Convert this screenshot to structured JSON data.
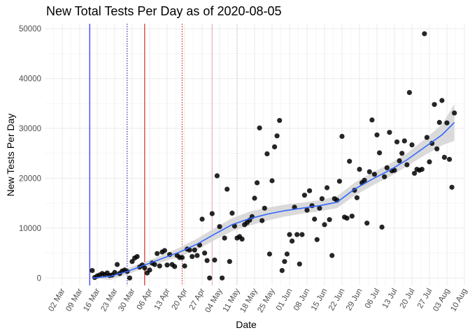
{
  "chart_data": {
    "type": "scatter",
    "title": "New Total Tests Per Day as of 2020-08-05",
    "xlabel": "Date",
    "ylabel": "New Tests Per Day",
    "x_type": "date",
    "xlim": [
      "2020-02-24",
      "2020-08-10"
    ],
    "ylim": [
      -1500,
      51000
    ],
    "grid": true,
    "legend": "none",
    "x_ticks": [
      "2020-03-02",
      "2020-03-09",
      "2020-03-16",
      "2020-03-23",
      "2020-03-30",
      "2020-04-06",
      "2020-04-13",
      "2020-04-20",
      "2020-04-27",
      "2020-05-04",
      "2020-05-11",
      "2020-05-18",
      "2020-05-25",
      "2020-06-01",
      "2020-06-08",
      "2020-06-15",
      "2020-06-22",
      "2020-06-29",
      "2020-07-06",
      "2020-07-13",
      "2020-07-20",
      "2020-07-27",
      "2020-08-03",
      "2020-08-10"
    ],
    "x_tick_labels": [
      "02 Mar",
      "09 Mar",
      "16 Mar",
      "23 Mar",
      "30 Mar",
      "06 Apr",
      "13 Apr",
      "20 Apr",
      "27 Apr",
      "04 May",
      "11 May",
      "18 May",
      "25 May",
      "01 Jun",
      "08 Jun",
      "15 Jun",
      "22 Jun",
      "29 Jun",
      "06 Jul",
      "13 Jul",
      "20 Jul",
      "27 Jul",
      "03 Aug",
      "10 Aug"
    ],
    "y_ticks": [
      0,
      10000,
      20000,
      30000,
      40000,
      50000
    ],
    "y_tick_labels": [
      "0",
      "10000",
      "20000",
      "30000",
      "40000",
      "50000"
    ],
    "vlines": [
      {
        "date": "2020-03-13",
        "color": "#0000ff",
        "style": "solid"
      },
      {
        "date": "2020-03-28",
        "color": "#00008b",
        "style": "dotted"
      },
      {
        "date": "2020-04-04",
        "color": "#cc0000",
        "style": "solid"
      },
      {
        "date": "2020-04-19",
        "color": "#cc0000",
        "style": "dotted"
      },
      {
        "date": "2020-05-01",
        "color": "#e8a0c0",
        "style": "solid"
      },
      {
        "date": "2020-05-11",
        "color": "#bbbbbb",
        "style": "dotted"
      }
    ],
    "series": [
      {
        "type": "scatter",
        "color": "#000000",
        "points": [
          [
            "2020-03-14",
            1500
          ],
          [
            "2020-03-15",
            100
          ],
          [
            "2020-03-16",
            400
          ],
          [
            "2020-03-17",
            600
          ],
          [
            "2020-03-18",
            900
          ],
          [
            "2020-03-19",
            700
          ],
          [
            "2020-03-20",
            1000
          ],
          [
            "2020-03-21",
            500
          ],
          [
            "2020-03-22",
            600
          ],
          [
            "2020-03-23",
            1100
          ],
          [
            "2020-03-24",
            2700
          ],
          [
            "2020-03-25",
            900
          ],
          [
            "2020-03-26",
            1400
          ],
          [
            "2020-03-27",
            1600
          ],
          [
            "2020-03-28",
            1300
          ],
          [
            "2020-03-29",
            0
          ],
          [
            "2020-03-30",
            3300
          ],
          [
            "2020-03-31",
            4000
          ],
          [
            "2020-04-01",
            4300
          ],
          [
            "2020-04-02",
            2200
          ],
          [
            "2020-04-03",
            2600
          ],
          [
            "2020-04-04",
            2000
          ],
          [
            "2020-04-05",
            1000
          ],
          [
            "2020-04-06",
            1600
          ],
          [
            "2020-04-07",
            3000
          ],
          [
            "2020-04-08",
            2700
          ],
          [
            "2020-04-09",
            4900
          ],
          [
            "2020-04-10",
            2400
          ],
          [
            "2020-04-11",
            5200
          ],
          [
            "2020-04-12",
            5500
          ],
          [
            "2020-04-13",
            2600
          ],
          [
            "2020-04-14",
            4700
          ],
          [
            "2020-04-15",
            2700
          ],
          [
            "2020-04-16",
            2300
          ],
          [
            "2020-04-17",
            4500
          ],
          [
            "2020-04-18",
            4100
          ],
          [
            "2020-04-19",
            4100
          ],
          [
            "2020-04-20",
            2400
          ],
          [
            "2020-04-21",
            5800
          ],
          [
            "2020-04-22",
            5600
          ],
          [
            "2020-04-23",
            4300
          ],
          [
            "2020-04-24",
            5600
          ],
          [
            "2020-04-25",
            4500
          ],
          [
            "2020-04-26",
            6600
          ],
          [
            "2020-04-27",
            11800
          ],
          [
            "2020-04-28",
            5000
          ],
          [
            "2020-04-29",
            3500
          ],
          [
            "2020-04-30",
            0
          ],
          [
            "2020-05-01",
            12900
          ],
          [
            "2020-05-02",
            3600
          ],
          [
            "2020-05-03",
            20500
          ],
          [
            "2020-05-04",
            10300
          ],
          [
            "2020-05-05",
            0
          ],
          [
            "2020-05-06",
            8000
          ],
          [
            "2020-05-07",
            17800
          ],
          [
            "2020-05-08",
            3300
          ],
          [
            "2020-05-09",
            13000
          ],
          [
            "2020-05-10",
            10400
          ],
          [
            "2020-05-11",
            8000
          ],
          [
            "2020-05-12",
            8300
          ],
          [
            "2020-05-13",
            7800
          ],
          [
            "2020-05-14",
            10700
          ],
          [
            "2020-05-15",
            11100
          ],
          [
            "2020-05-16",
            11600
          ],
          [
            "2020-05-17",
            12300
          ],
          [
            "2020-05-18",
            16000
          ],
          [
            "2020-05-19",
            19100
          ],
          [
            "2020-05-20",
            30100
          ],
          [
            "2020-05-21",
            11500
          ],
          [
            "2020-05-22",
            14000
          ],
          [
            "2020-05-23",
            24900
          ],
          [
            "2020-05-24",
            4800
          ],
          [
            "2020-05-25",
            19500
          ],
          [
            "2020-05-26",
            26300
          ],
          [
            "2020-05-27",
            28500
          ],
          [
            "2020-05-28",
            31600
          ],
          [
            "2020-05-29",
            1500
          ],
          [
            "2020-05-30",
            3300
          ],
          [
            "2020-05-31",
            4800
          ],
          [
            "2020-06-01",
            8700
          ],
          [
            "2020-06-02",
            7400
          ],
          [
            "2020-06-03",
            14200
          ],
          [
            "2020-06-04",
            8700
          ],
          [
            "2020-06-05",
            2800
          ],
          [
            "2020-06-06",
            8700
          ],
          [
            "2020-06-07",
            16600
          ],
          [
            "2020-06-08",
            13600
          ],
          [
            "2020-06-09",
            17500
          ],
          [
            "2020-06-10",
            14500
          ],
          [
            "2020-06-11",
            11800
          ],
          [
            "2020-06-12",
            7700
          ],
          [
            "2020-06-13",
            14000
          ],
          [
            "2020-06-14",
            15900
          ],
          [
            "2020-06-15",
            10700
          ],
          [
            "2020-06-16",
            18100
          ],
          [
            "2020-06-17",
            11700
          ],
          [
            "2020-06-18",
            4500
          ],
          [
            "2020-06-19",
            15900
          ],
          [
            "2020-06-20",
            15600
          ],
          [
            "2020-06-21",
            19400
          ],
          [
            "2020-06-22",
            28400
          ],
          [
            "2020-06-23",
            12200
          ],
          [
            "2020-06-24",
            12000
          ],
          [
            "2020-06-25",
            23400
          ],
          [
            "2020-06-26",
            12400
          ],
          [
            "2020-06-27",
            17600
          ],
          [
            "2020-06-28",
            16100
          ],
          [
            "2020-06-29",
            21800
          ],
          [
            "2020-06-30",
            19100
          ],
          [
            "2020-07-01",
            19600
          ],
          [
            "2020-07-02",
            11000
          ],
          [
            "2020-07-03",
            21300
          ],
          [
            "2020-07-04",
            31700
          ],
          [
            "2020-07-05",
            20800
          ],
          [
            "2020-07-06",
            28700
          ],
          [
            "2020-07-07",
            25100
          ],
          [
            "2020-07-08",
            10200
          ],
          [
            "2020-07-09",
            20300
          ],
          [
            "2020-07-10",
            22100
          ],
          [
            "2020-07-11",
            29200
          ],
          [
            "2020-07-12",
            21500
          ],
          [
            "2020-07-13",
            21600
          ],
          [
            "2020-07-14",
            27300
          ],
          [
            "2020-07-15",
            23500
          ],
          [
            "2020-07-16",
            25000
          ],
          [
            "2020-07-17",
            27500
          ],
          [
            "2020-07-18",
            22700
          ],
          [
            "2020-07-19",
            37200
          ],
          [
            "2020-07-20",
            26700
          ],
          [
            "2020-07-21",
            21000
          ],
          [
            "2020-07-22",
            21800
          ],
          [
            "2020-07-23",
            21600
          ],
          [
            "2020-07-24",
            21800
          ],
          [
            "2020-07-25",
            49000
          ],
          [
            "2020-07-26",
            28200
          ],
          [
            "2020-07-27",
            23300
          ],
          [
            "2020-07-28",
            27000
          ],
          [
            "2020-07-29",
            34800
          ],
          [
            "2020-07-30",
            25900
          ],
          [
            "2020-07-31",
            31200
          ],
          [
            "2020-08-01",
            35600
          ],
          [
            "2020-08-02",
            24200
          ],
          [
            "2020-08-03",
            31100
          ],
          [
            "2020-08-04",
            23800
          ],
          [
            "2020-08-05",
            18200
          ],
          [
            "2020-08-06",
            33100
          ]
        ]
      },
      {
        "type": "smooth",
        "color": "#3366ff",
        "band_color": "#d3d3d3",
        "points": [
          [
            "2020-03-14",
            0,
            0,
            0
          ],
          [
            "2020-03-21",
            300,
            -400,
            1000
          ],
          [
            "2020-03-28",
            1300,
            700,
            1900
          ],
          [
            "2020-04-04",
            2600,
            2000,
            3200
          ],
          [
            "2020-04-11",
            3900,
            3200,
            4600
          ],
          [
            "2020-04-18",
            5200,
            4300,
            6100
          ],
          [
            "2020-04-25",
            6800,
            5700,
            7900
          ],
          [
            "2020-05-02",
            8800,
            7600,
            10000
          ],
          [
            "2020-05-09",
            10700,
            9400,
            12000
          ],
          [
            "2020-05-16",
            11900,
            10500,
            13300
          ],
          [
            "2020-05-23",
            12800,
            11500,
            14100
          ],
          [
            "2020-05-30",
            13500,
            12300,
            14700
          ],
          [
            "2020-06-06",
            14000,
            12900,
            15100
          ],
          [
            "2020-06-13",
            14500,
            13400,
            15600
          ],
          [
            "2020-06-20",
            15200,
            14000,
            16400
          ],
          [
            "2020-06-27",
            17800,
            16500,
            19100
          ],
          [
            "2020-07-04",
            19800,
            18500,
            21100
          ],
          [
            "2020-07-11",
            21600,
            20300,
            22900
          ],
          [
            "2020-07-18",
            23700,
            22400,
            25000
          ],
          [
            "2020-07-25",
            26200,
            24600,
            27800
          ],
          [
            "2020-08-01",
            28700,
            26600,
            30800
          ],
          [
            "2020-08-06",
            31200,
            27500,
            34900
          ]
        ]
      }
    ]
  }
}
